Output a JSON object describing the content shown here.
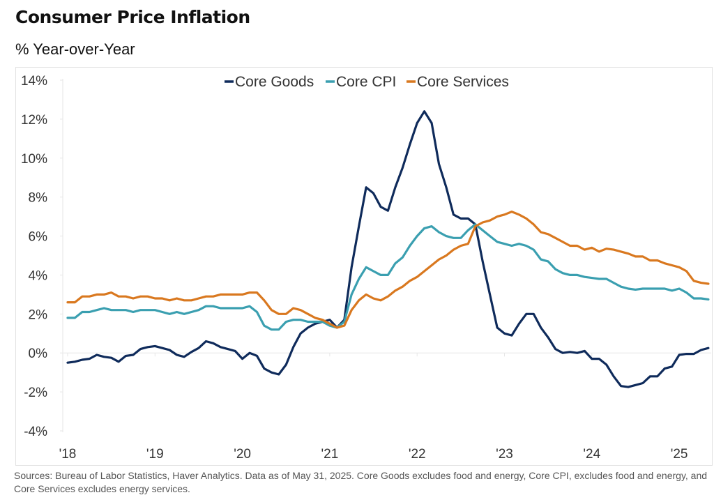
{
  "header": {
    "title": "Consumer Price Inflation",
    "subtitle": "% Year-over-Year"
  },
  "footer": {
    "source": "Sources: Bureau of Labor Statistics, Haver Analytics. Data as of May 31, 2025. Core Goods excludes food and energy, Core CPI, excludes food and energy, and Core Services excludes energy services."
  },
  "chart_data": {
    "type": "line",
    "title": "Consumer Price Inflation",
    "subtitle": "% Year-over-Year",
    "x_start": "2018-01",
    "x_end": "2025-05",
    "x_frequency": "monthly",
    "x_tick_labels": [
      "'18",
      "'19",
      "'20",
      "'21",
      "'22",
      "'23",
      "'24",
      "'25"
    ],
    "y_tick_labels": [
      "14%",
      "12%",
      "10%",
      "8%",
      "6%",
      "4%",
      "2%",
      "0%",
      "-2%",
      "-4%"
    ],
    "ylim": [
      -4,
      14
    ],
    "y_ticks": [
      14,
      12,
      10,
      8,
      6,
      4,
      2,
      0,
      -2,
      -4
    ],
    "grid": false,
    "zero_line": true,
    "legend_position": "top-center",
    "series": [
      {
        "name": "Core Goods",
        "color": "#0f2b5b",
        "values": [
          -0.5,
          -0.45,
          -0.35,
          -0.3,
          -0.1,
          -0.2,
          -0.25,
          -0.45,
          -0.15,
          -0.1,
          0.2,
          0.3,
          0.35,
          0.25,
          0.15,
          -0.1,
          -0.2,
          0.05,
          0.25,
          0.6,
          0.5,
          0.3,
          0.2,
          0.1,
          -0.3,
          0.0,
          -0.15,
          -0.8,
          -1.0,
          -1.1,
          -0.6,
          0.3,
          1.0,
          1.3,
          1.5,
          1.6,
          1.7,
          1.3,
          1.7,
          4.4,
          6.5,
          8.5,
          8.2,
          7.5,
          7.3,
          8.5,
          9.5,
          10.7,
          11.8,
          12.4,
          11.8,
          9.7,
          8.5,
          7.1,
          6.9,
          6.9,
          6.6,
          4.7,
          3.0,
          1.3,
          1.0,
          0.9,
          1.5,
          2.0,
          2.0,
          1.3,
          0.8,
          0.2,
          0.0,
          0.05,
          0.0,
          0.1,
          -0.3,
          -0.3,
          -0.6,
          -1.2,
          -1.7,
          -1.75,
          -1.65,
          -1.55,
          -1.2,
          -1.2,
          -0.8,
          -0.7,
          -0.1,
          -0.05,
          -0.05,
          0.15,
          0.25
        ]
      },
      {
        "name": "Core CPI",
        "color": "#3a9fb0",
        "values": [
          1.8,
          1.8,
          2.1,
          2.1,
          2.2,
          2.3,
          2.2,
          2.2,
          2.2,
          2.1,
          2.2,
          2.2,
          2.2,
          2.1,
          2.0,
          2.1,
          2.0,
          2.1,
          2.2,
          2.4,
          2.4,
          2.3,
          2.3,
          2.3,
          2.3,
          2.4,
          2.1,
          1.4,
          1.2,
          1.2,
          1.6,
          1.7,
          1.7,
          1.6,
          1.6,
          1.6,
          1.4,
          1.3,
          1.6,
          3.0,
          3.8,
          4.4,
          4.2,
          4.0,
          4.0,
          4.6,
          4.9,
          5.5,
          6.0,
          6.4,
          6.5,
          6.2,
          6.0,
          5.9,
          5.9,
          6.3,
          6.6,
          6.3,
          6.0,
          5.7,
          5.6,
          5.5,
          5.6,
          5.5,
          5.3,
          4.8,
          4.7,
          4.3,
          4.1,
          4.0,
          4.0,
          3.9,
          3.85,
          3.8,
          3.8,
          3.6,
          3.4,
          3.3,
          3.25,
          3.3,
          3.3,
          3.3,
          3.3,
          3.2,
          3.3,
          3.1,
          2.8,
          2.8,
          2.75
        ]
      },
      {
        "name": "Core Services",
        "color": "#d9781f",
        "values": [
          2.6,
          2.6,
          2.9,
          2.9,
          3.0,
          3.0,
          3.1,
          2.9,
          2.9,
          2.8,
          2.9,
          2.9,
          2.8,
          2.8,
          2.7,
          2.8,
          2.7,
          2.7,
          2.8,
          2.9,
          2.9,
          3.0,
          3.0,
          3.0,
          3.0,
          3.1,
          3.1,
          2.7,
          2.2,
          2.0,
          2.0,
          2.3,
          2.2,
          2.0,
          1.8,
          1.7,
          1.5,
          1.3,
          1.4,
          2.2,
          2.7,
          3.0,
          2.8,
          2.7,
          2.9,
          3.2,
          3.4,
          3.7,
          3.9,
          4.2,
          4.5,
          4.8,
          5.0,
          5.3,
          5.5,
          5.6,
          6.5,
          6.7,
          6.8,
          7.0,
          7.1,
          7.25,
          7.1,
          6.9,
          6.6,
          6.2,
          6.1,
          5.9,
          5.7,
          5.5,
          5.5,
          5.3,
          5.4,
          5.2,
          5.35,
          5.3,
          5.2,
          5.1,
          4.95,
          4.95,
          4.75,
          4.75,
          4.6,
          4.5,
          4.4,
          4.2,
          3.7,
          3.6,
          3.55
        ]
      }
    ]
  }
}
